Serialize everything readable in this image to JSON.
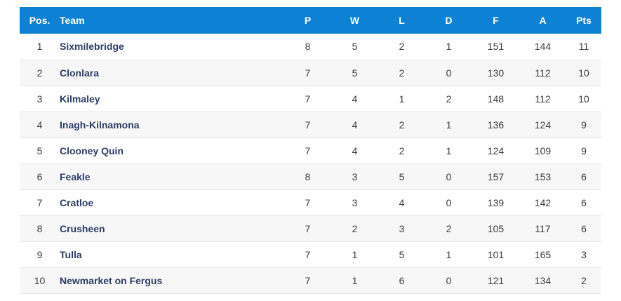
{
  "colors": {
    "header_bg": "#0d81d3",
    "header_text": "#ffffff",
    "team_text": "#2b3e63",
    "number_text": "#3b3b3b",
    "row_border": "#e4e4e4",
    "row_alt_bg": "#f7f7f7"
  },
  "table": {
    "columns": [
      {
        "key": "pos",
        "label": "Pos."
      },
      {
        "key": "team",
        "label": "Team"
      },
      {
        "key": "p",
        "label": "P"
      },
      {
        "key": "w",
        "label": "W"
      },
      {
        "key": "l",
        "label": "L"
      },
      {
        "key": "d",
        "label": "D"
      },
      {
        "key": "f",
        "label": "F"
      },
      {
        "key": "a",
        "label": "A"
      },
      {
        "key": "pts",
        "label": "Pts"
      }
    ],
    "rows": [
      {
        "pos": "1",
        "team": "Sixmilebridge",
        "p": "8",
        "w": "5",
        "l": "2",
        "d": "1",
        "f": "151",
        "a": "144",
        "pts": "11"
      },
      {
        "pos": "2",
        "team": "Clonlara",
        "p": "7",
        "w": "5",
        "l": "2",
        "d": "0",
        "f": "130",
        "a": "112",
        "pts": "10"
      },
      {
        "pos": "3",
        "team": "Kilmaley",
        "p": "7",
        "w": "4",
        "l": "1",
        "d": "2",
        "f": "148",
        "a": "112",
        "pts": "10"
      },
      {
        "pos": "4",
        "team": "Inagh-Kilnamona",
        "p": "7",
        "w": "4",
        "l": "2",
        "d": "1",
        "f": "136",
        "a": "124",
        "pts": "9"
      },
      {
        "pos": "5",
        "team": "Clooney Quin",
        "p": "7",
        "w": "4",
        "l": "2",
        "d": "1",
        "f": "124",
        "a": "109",
        "pts": "9"
      },
      {
        "pos": "6",
        "team": "Feakle",
        "p": "8",
        "w": "3",
        "l": "5",
        "d": "0",
        "f": "157",
        "a": "153",
        "pts": "6"
      },
      {
        "pos": "7",
        "team": "Cratloe",
        "p": "7",
        "w": "3",
        "l": "4",
        "d": "0",
        "f": "139",
        "a": "142",
        "pts": "6"
      },
      {
        "pos": "8",
        "team": "Crusheen",
        "p": "7",
        "w": "2",
        "l": "3",
        "d": "2",
        "f": "105",
        "a": "117",
        "pts": "6"
      },
      {
        "pos": "9",
        "team": "Tulla",
        "p": "7",
        "w": "1",
        "l": "5",
        "d": "1",
        "f": "101",
        "a": "165",
        "pts": "3"
      },
      {
        "pos": "10",
        "team": "Newmarket on Fergus",
        "p": "7",
        "w": "1",
        "l": "6",
        "d": "0",
        "f": "121",
        "a": "134",
        "pts": "2"
      }
    ]
  }
}
